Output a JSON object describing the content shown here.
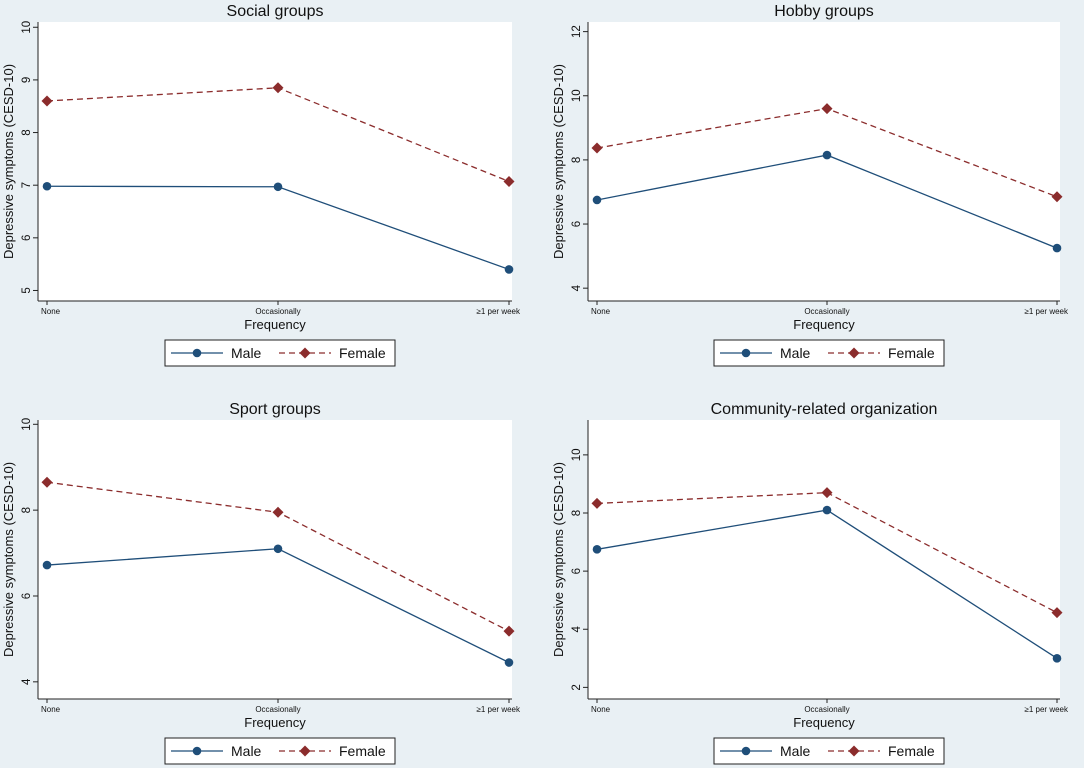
{
  "colors": {
    "background": "#e9f0f4",
    "plot_area": "#ffffff",
    "male": "#1f4e79",
    "female": "#8b2c2c",
    "axis": "#222222"
  },
  "legend": {
    "male_label": "Male",
    "female_label": "Female"
  },
  "chart_data": [
    {
      "type": "line",
      "title": "Social groups",
      "xlabel": "Frequency",
      "ylabel": "Depressive symptoms (CESD-10)",
      "categories": [
        "None",
        "Occasionally",
        "≥1 per week"
      ],
      "ylim": [
        4.8,
        10.1
      ],
      "yticks": [
        5,
        6,
        7,
        8,
        9,
        10
      ],
      "series": [
        {
          "name": "Male",
          "values": [
            6.98,
            6.97,
            5.4
          ]
        },
        {
          "name": "Female",
          "values": [
            8.6,
            8.85,
            7.07
          ]
        }
      ]
    },
    {
      "type": "line",
      "title": "Hobby groups",
      "xlabel": "Frequency",
      "ylabel": "Depressive symptoms (CESD-10)",
      "categories": [
        "None",
        "Occasionally",
        "≥1 per week"
      ],
      "ylim": [
        3.6,
        12.3
      ],
      "yticks": [
        4,
        6,
        8,
        10,
        12
      ],
      "series": [
        {
          "name": "Male",
          "values": [
            6.75,
            8.15,
            5.25
          ]
        },
        {
          "name": "Female",
          "values": [
            8.37,
            9.6,
            6.85
          ]
        }
      ]
    },
    {
      "type": "line",
      "title": "Sport groups",
      "xlabel": "Frequency",
      "ylabel": "Depressive symptoms (CESD-10)",
      "categories": [
        "None",
        "Occasionally",
        "≥1 per week"
      ],
      "ylim": [
        3.6,
        10.1
      ],
      "yticks": [
        4,
        6,
        8,
        10
      ],
      "series": [
        {
          "name": "Male",
          "values": [
            6.72,
            7.1,
            4.45
          ]
        },
        {
          "name": "Female",
          "values": [
            8.65,
            7.95,
            5.18
          ]
        }
      ]
    },
    {
      "type": "line",
      "title": "Community-related organization",
      "xlabel": "Frequency",
      "ylabel": "Depressive symptoms (CESD-10)",
      "categories": [
        "None",
        "Occasionally",
        "≥1 per week"
      ],
      "ylim": [
        1.6,
        11.2
      ],
      "yticks": [
        2,
        4,
        6,
        8,
        10
      ],
      "series": [
        {
          "name": "Male",
          "values": [
            6.75,
            8.1,
            3.0
          ]
        },
        {
          "name": "Female",
          "values": [
            8.33,
            8.7,
            4.57
          ]
        }
      ]
    }
  ]
}
